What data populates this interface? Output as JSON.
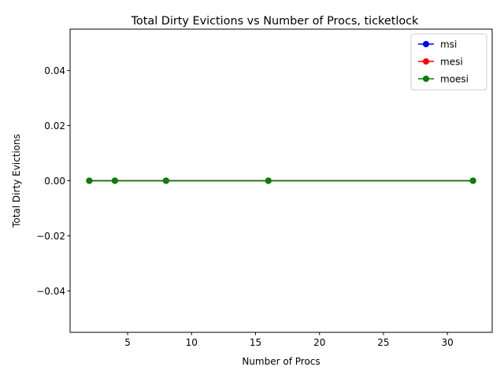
{
  "chart_data": {
    "type": "line",
    "title": "Total Dirty Evictions vs Number of Procs, ticketlock",
    "xlabel": "Number of Procs",
    "ylabel": "Total Dirty Evictions",
    "xlim": [
      0.5,
      33.5
    ],
    "ylim": [
      -0.055,
      0.055
    ],
    "xticks": [
      5,
      10,
      15,
      20,
      25,
      30
    ],
    "xtick_labels": [
      "5",
      "10",
      "15",
      "20",
      "25",
      "30"
    ],
    "yticks": [
      -0.04,
      -0.02,
      0.0,
      0.02,
      0.04
    ],
    "ytick_labels": [
      "−0.04",
      "−0.02",
      "0.00",
      "0.02",
      "0.04"
    ],
    "x": [
      2,
      4,
      8,
      16,
      32
    ],
    "series": [
      {
        "name": "msi",
        "color": "#0000ff",
        "values": [
          0,
          0,
          0,
          0,
          0
        ]
      },
      {
        "name": "mesi",
        "color": "#ff0000",
        "values": [
          0,
          0,
          0,
          0,
          0
        ]
      },
      {
        "name": "moesi",
        "color": "#008000",
        "values": [
          0,
          0,
          0,
          0,
          0
        ]
      }
    ],
    "marker": "circle",
    "grid": false,
    "legend_position": "top-right"
  }
}
